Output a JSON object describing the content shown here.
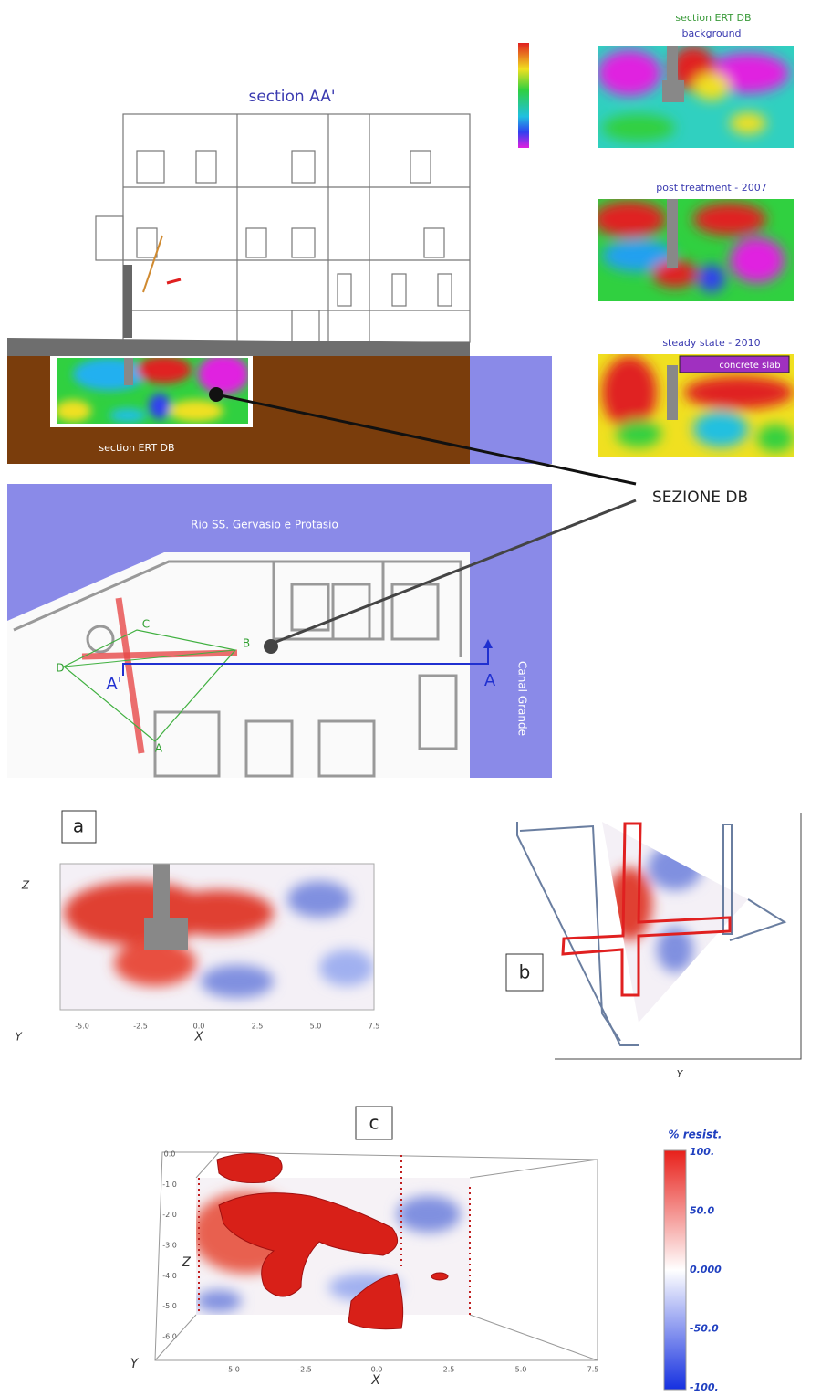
{
  "section_view": {
    "title": "section AA'",
    "ert_label": "section ERT DB"
  },
  "ert_panels": [
    {
      "title_lines": [
        "section ERT DB",
        "background"
      ]
    },
    {
      "title": "post treatment - 2007"
    },
    {
      "title": "steady state - 2010",
      "annotation": "concrete slab"
    }
  ],
  "callout": "SEZIONE DB",
  "plan": {
    "canal_top": "Rio SS. Gervasio e Protasio",
    "canal_right": "Canal Grande",
    "section_markers": [
      "A",
      "A'"
    ],
    "electrode_points": [
      "A",
      "B",
      "C",
      "D"
    ]
  },
  "panel_a": {
    "label": "a",
    "axis_x": "X",
    "axis_y": "Y",
    "axis_z": "Z",
    "xticks": [
      "-5.0",
      "-2.5",
      "0.0",
      "2.5",
      "5.0",
      "7.5"
    ]
  },
  "panel_b": {
    "label": "b",
    "axis_y": "Y"
  },
  "panel_c": {
    "label": "c",
    "axis_x": "X",
    "axis_y": "Y",
    "axis_z": "Z",
    "zticks": [
      "0.0",
      "-1.0",
      "-2.0",
      "-3.0",
      "-4.0",
      "-5.0",
      "-6.0"
    ],
    "xticks": [
      "-5.0",
      "-2.5",
      "0.0",
      "2.5",
      "5.0",
      "7.5"
    ],
    "colorbar": {
      "title": "% resist.",
      "labels": [
        "100.",
        "50.0",
        "0.000",
        "-50.0",
        "-100."
      ]
    }
  }
}
